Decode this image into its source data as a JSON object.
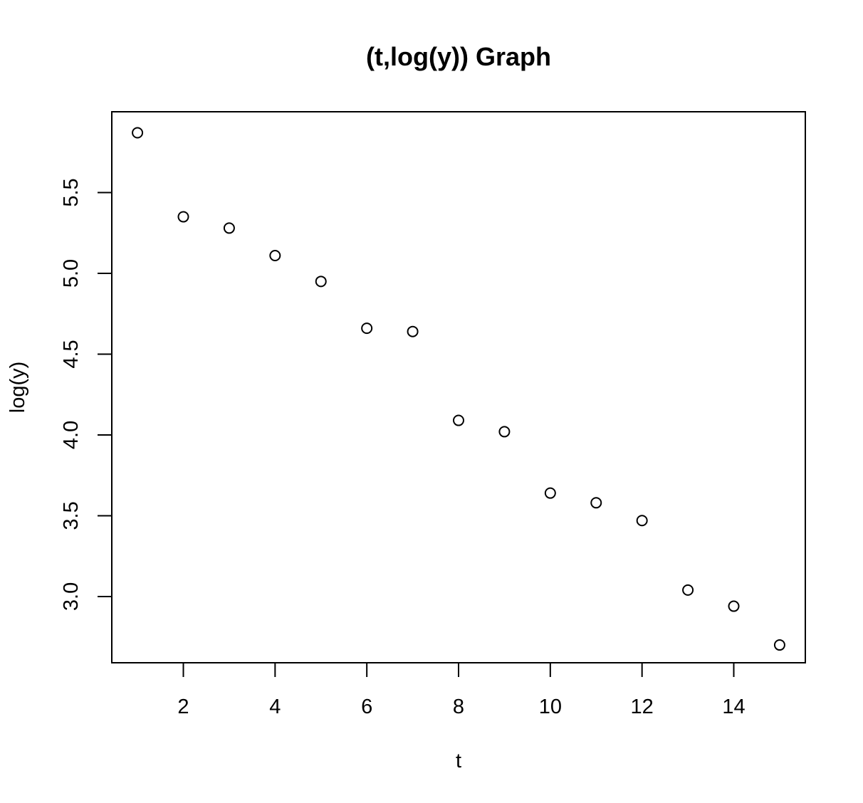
{
  "chart_data": {
    "type": "scatter",
    "title": "(t,log(y)) Graph",
    "xlabel": "t",
    "ylabel": "log(y)",
    "x_ticks": [
      2,
      4,
      6,
      8,
      10,
      12,
      14
    ],
    "x_tick_labels": [
      "2",
      "4",
      "6",
      "8",
      "10",
      "12",
      "14"
    ],
    "y_ticks": [
      3.0,
      3.5,
      4.0,
      4.5,
      5.0,
      5.5
    ],
    "y_tick_labels": [
      "3.0",
      "3.5",
      "4.0",
      "4.5",
      "5.0",
      "5.5"
    ],
    "xlim": [
      0.44,
      15.56
    ],
    "ylim": [
      2.59,
      6.0
    ],
    "grid": false,
    "legend": "none",
    "marker": "open-circle",
    "series": [
      {
        "x": [
          1,
          2,
          3,
          4,
          5,
          6,
          7,
          8,
          9,
          10,
          11,
          12,
          13,
          14,
          15
        ],
        "y": [
          5.87,
          5.35,
          5.28,
          5.11,
          4.95,
          4.66,
          4.64,
          4.09,
          4.02,
          3.64,
          3.58,
          3.47,
          3.04,
          2.94,
          2.7
        ]
      }
    ]
  }
}
